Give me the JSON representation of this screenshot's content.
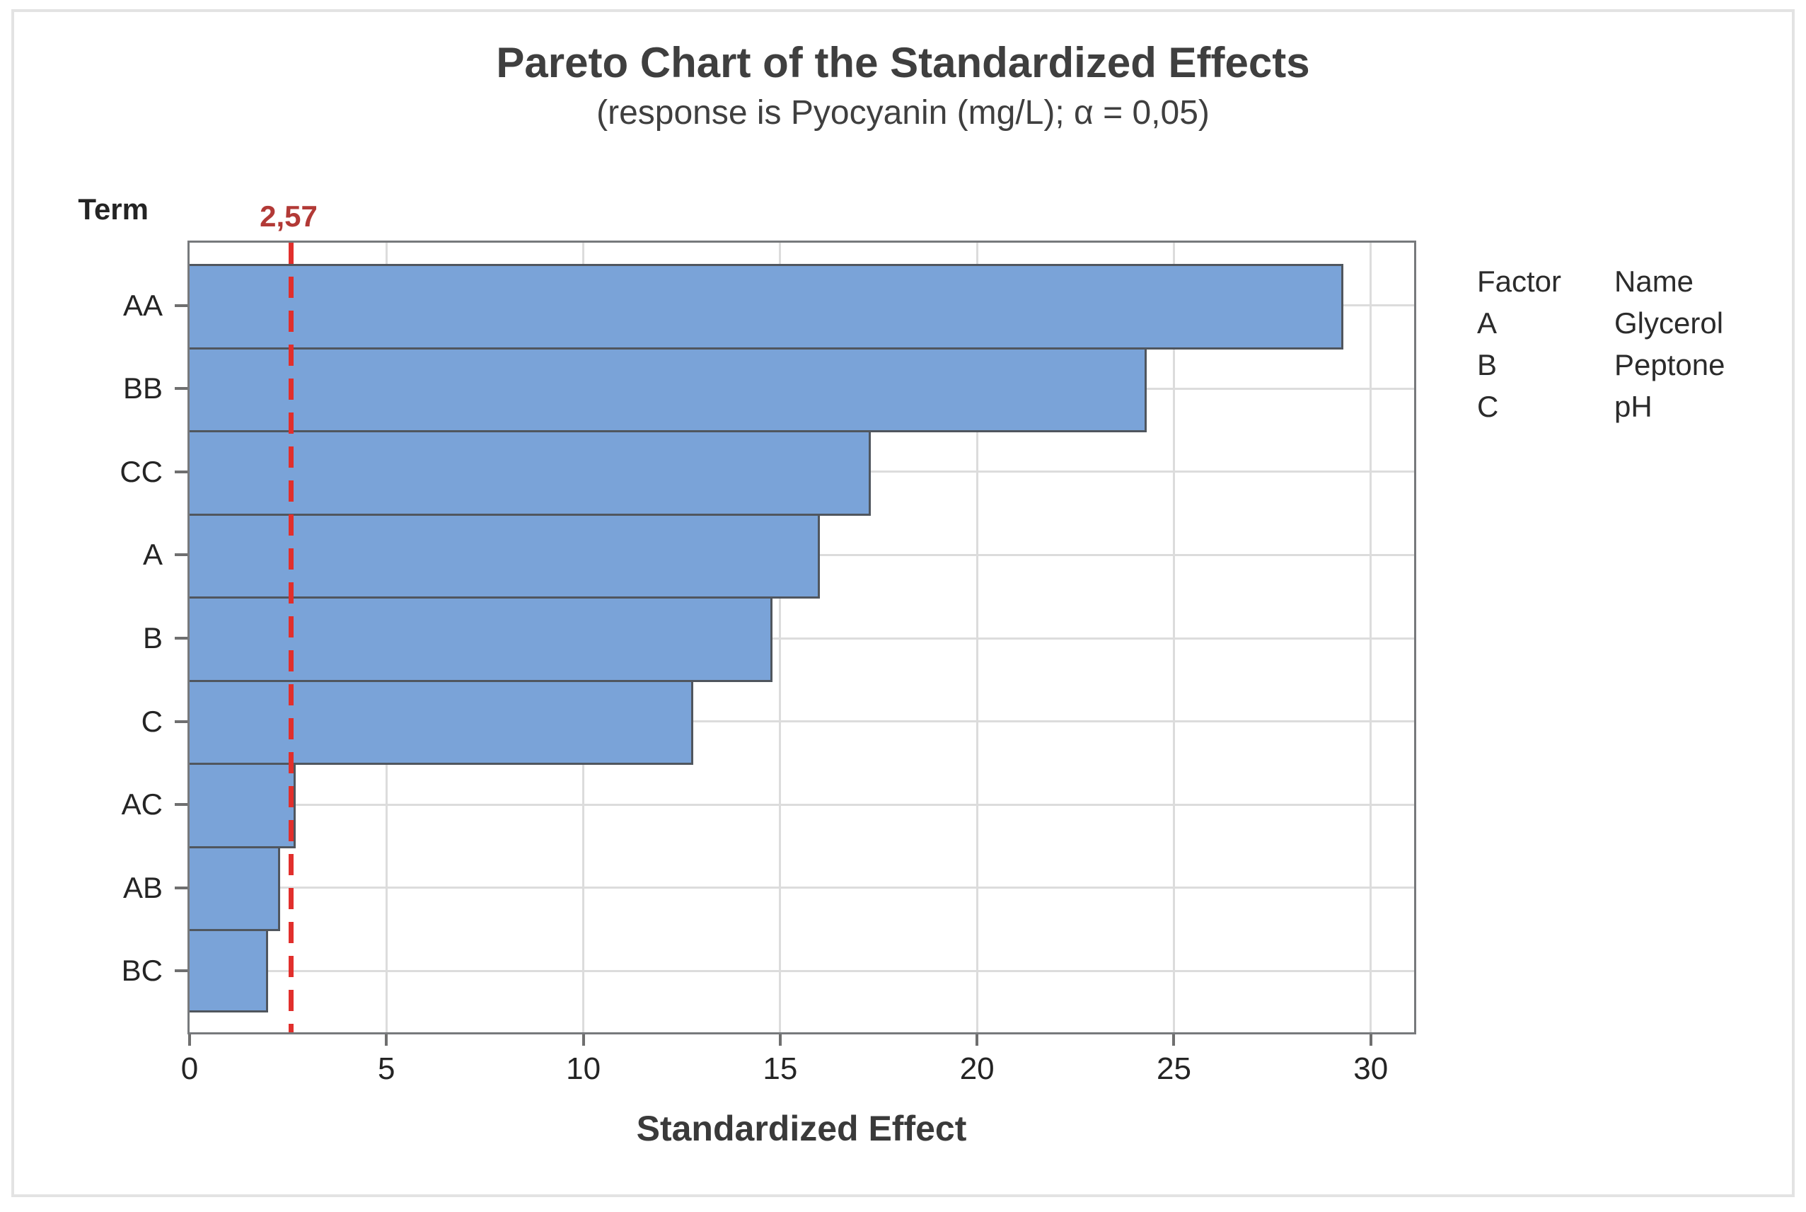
{
  "chart_data": {
    "type": "bar",
    "orientation": "horizontal",
    "title": "Pareto Chart of the Standardized Effects",
    "subtitle": "(response is Pyocyanin (mg/L); α = 0,05)",
    "xlabel": "Standardized Effect",
    "ylabel": "Term",
    "categories": [
      "AA",
      "BB",
      "CC",
      "A",
      "B",
      "C",
      "AC",
      "AB",
      "BC"
    ],
    "values": [
      29.3,
      24.3,
      17.3,
      16.0,
      14.8,
      12.8,
      2.7,
      2.3,
      2.0
    ],
    "x_ticks": [
      0,
      5,
      10,
      15,
      20,
      25,
      30
    ],
    "xlim": [
      0,
      31.1
    ],
    "grid": true,
    "reference_line": {
      "value": 2.57,
      "label": "2,57"
    },
    "legend": {
      "position": "right",
      "headers": [
        "Factor",
        "Name"
      ],
      "rows": [
        [
          "A",
          "Glycerol"
        ],
        [
          "B",
          "Peptone"
        ],
        [
          "C",
          "pH"
        ]
      ]
    },
    "colors": {
      "bar_fill": "#7aa3d8",
      "bar_edge": "#50565e",
      "reference_line": "#e12f2c",
      "reference_label": "#b23936",
      "gridline": "#dcdcdc",
      "plot_frame": "#77797c",
      "title_text": "#3f3f3f",
      "axis_text": "#242424"
    }
  }
}
